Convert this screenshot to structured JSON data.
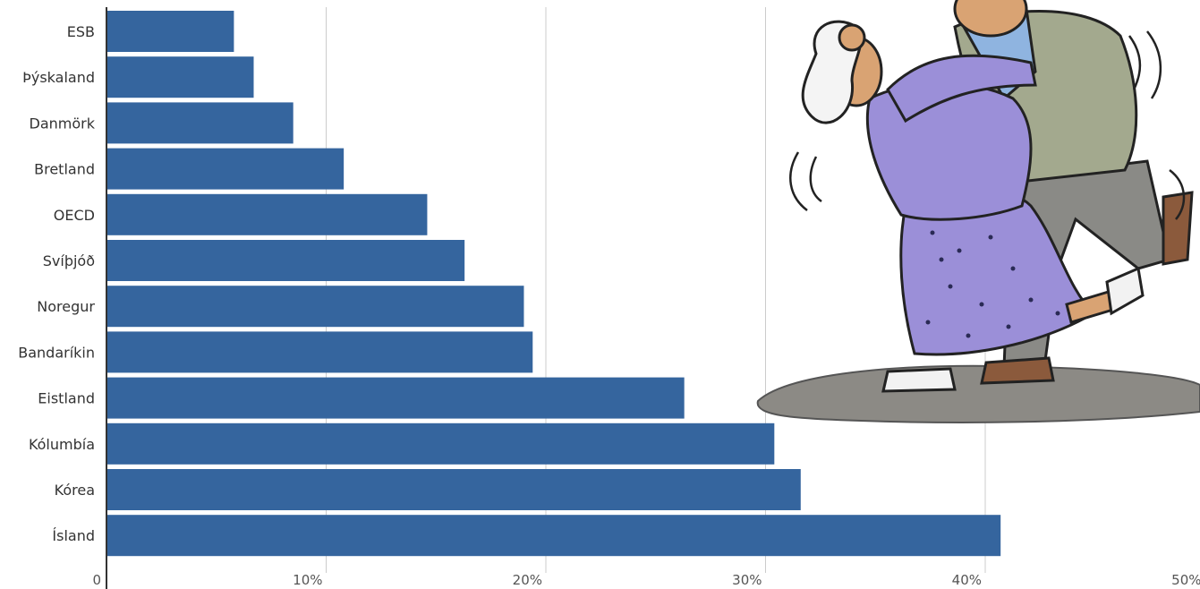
{
  "chart_data": {
    "type": "bar",
    "orientation": "horizontal",
    "categories": [
      "ESB",
      "Þýskaland",
      "Danmörk",
      "Bretland",
      "OECD",
      "Svíþjóð",
      "Noregur",
      "Bandaríkin",
      "Eistland",
      "Kólumbía",
      "Kórea",
      "Ísland"
    ],
    "values": [
      5.8,
      6.7,
      8.5,
      10.8,
      14.6,
      16.3,
      19.0,
      19.4,
      26.3,
      30.4,
      31.6,
      40.7
    ],
    "x_ticks": [
      "0",
      "10%",
      "20%",
      "30%",
      "40%",
      "50%"
    ],
    "xlim": [
      0,
      50
    ],
    "grid": true,
    "bar_color": "#35659e"
  },
  "illustration": {
    "description": "cartoon of an elderly couple dancing",
    "skin_color": "#d9a373",
    "dress_color": "#9b8fd8",
    "jacket_color": "#a3a98e",
    "shirt_color": "#8fb4e0",
    "trousers_color": "#8a8a86"
  }
}
